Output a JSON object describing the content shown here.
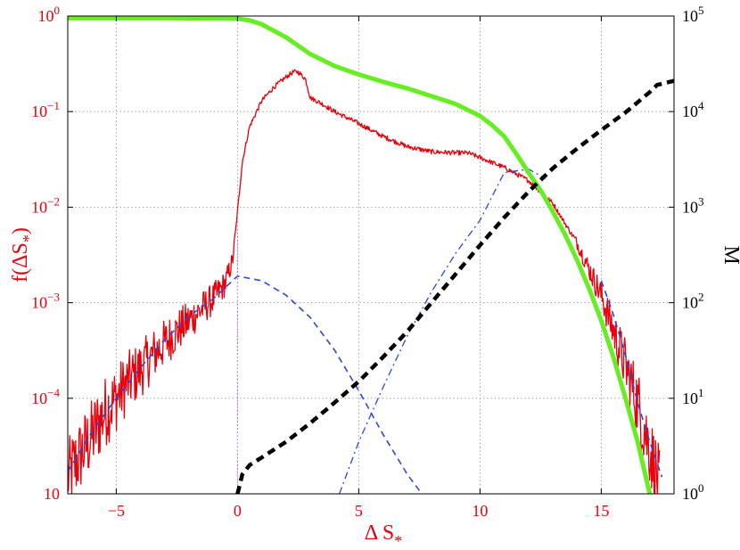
{
  "chart_data": {
    "type": "line",
    "xlabel": "Δ S*",
    "ylabel": "f(ΔS*)",
    "y2label": "M",
    "xlim": [
      -7,
      18
    ],
    "ylim": [
      1e-05,
      1
    ],
    "y2lim": [
      1,
      100000
    ],
    "yscale": "log",
    "y2scale": "log",
    "grid": true,
    "x_ticks": [
      -5,
      0,
      5,
      10,
      15
    ],
    "y_ticks": [
      1e-05,
      0.0001,
      0.001,
      0.01,
      0.1,
      1
    ],
    "y_tick_bases": [
      "10",
      "10",
      "10",
      "10",
      "10",
      "10"
    ],
    "y_tick_exps": [
      "",
      "−4",
      "−3",
      "−2",
      "−1",
      "0"
    ],
    "y2_ticks": [
      1,
      10,
      100,
      1000,
      10000,
      100000
    ],
    "y2_tick_bases": [
      "10",
      "10",
      "10",
      "10",
      "10",
      "10"
    ],
    "y2_tick_exps": [
      "0",
      "1",
      "2",
      "3",
      "4",
      "5"
    ],
    "colors": {
      "red": "#e8000b",
      "green": "#66ee22",
      "blue": "#2a48e0",
      "black": "#000000",
      "magenta": "#d070e0",
      "grid": "#7a7a7a"
    },
    "series": [
      {
        "axis": "left",
        "style": "solid-red",
        "noisy": true,
        "x": [
          -7,
          -6.5,
          -6,
          -5.5,
          -5,
          -4.5,
          -4,
          -3.5,
          -3,
          -2.5,
          -2,
          -1.5,
          -1,
          -0.5,
          -0.2,
          0,
          0.2,
          0.5,
          1,
          1.5,
          2,
          2.3,
          2.5,
          2.8,
          3,
          3.5,
          4,
          5,
          6,
          7,
          8,
          9,
          9.5,
          10,
          11,
          12,
          13,
          14,
          15,
          16,
          16.5,
          17,
          17.4
        ],
        "y": [
          1.5e-05,
          2.5e-05,
          4e-05,
          7e-05,
          0.0001,
          0.00015,
          0.0002,
          0.00028,
          0.00038,
          0.0005,
          0.00065,
          0.00085,
          0.0011,
          0.0016,
          0.0028,
          0.009,
          0.03,
          0.07,
          0.13,
          0.18,
          0.23,
          0.26,
          0.26,
          0.22,
          0.14,
          0.12,
          0.1,
          0.075,
          0.055,
          0.043,
          0.038,
          0.037,
          0.037,
          0.033,
          0.026,
          0.019,
          0.011,
          0.0042,
          0.0012,
          0.00022,
          9e-05,
          3e-05,
          1.2e-05
        ]
      },
      {
        "axis": "left",
        "style": "dashed-blue",
        "x": [
          -7,
          -6,
          -5,
          -4,
          -3,
          -2,
          -1,
          0,
          1,
          2,
          3,
          4,
          5,
          6,
          7,
          7.6
        ],
        "y": [
          1.7e-05,
          4.5e-05,
          0.0001,
          0.00021,
          0.00041,
          0.00072,
          0.0011,
          0.0019,
          0.0017,
          0.0012,
          0.0007,
          0.00032,
          0.00012,
          4.2e-05,
          1.6e-05,
          1e-05
        ]
      },
      {
        "axis": "left",
        "style": "dashed-blue",
        "x": [
          15,
          15.5,
          16,
          16.5,
          17,
          17.5
        ],
        "y": [
          0.0017,
          0.00075,
          0.00028,
          9e-05,
          3.5e-05,
          1.5e-05
        ]
      },
      {
        "axis": "left",
        "style": "dashdot-blue",
        "x": [
          4.2,
          5,
          6,
          7,
          8,
          9,
          10,
          11,
          12,
          12.7
        ],
        "y": [
          1e-05,
          3.5e-05,
          0.00013,
          0.00045,
          0.0013,
          0.0033,
          0.0073,
          0.023,
          0.025,
          0.02
        ]
      },
      {
        "axis": "left",
        "style": "dotted-magenta",
        "x": [
          0,
          0
        ],
        "y": [
          1e-05,
          0.009
        ]
      },
      {
        "axis": "right",
        "style": "solid-green",
        "x": [
          -7,
          -5,
          -3,
          -1,
          0,
          0.5,
          1,
          2,
          3,
          4,
          5,
          6,
          7,
          8,
          9,
          10,
          10.5,
          11,
          11.5,
          12,
          12.5,
          13,
          13.5,
          14,
          14.5,
          15,
          15.5,
          16,
          16.5,
          17
        ],
        "y": [
          95000,
          95000,
          95000,
          94500,
          94000,
          90000,
          82000,
          60000,
          40000,
          30000,
          24500,
          20500,
          17500,
          14500,
          12000,
          9000,
          7200,
          5500,
          3600,
          2300,
          1500,
          900,
          520,
          280,
          140,
          65,
          27,
          10,
          3.5,
          1
        ]
      },
      {
        "axis": "right",
        "style": "dashed-black",
        "x": [
          0,
          0.2,
          0.5,
          1,
          2,
          3,
          4,
          5,
          6,
          7,
          8,
          9,
          10,
          11,
          12,
          13,
          14,
          15,
          16,
          17,
          17.3,
          18
        ],
        "y": [
          1,
          1.6,
          2,
          2.4,
          3.5,
          5.5,
          9,
          15,
          27,
          50,
          100,
          200,
          400,
          780,
          1450,
          2550,
          4100,
          6400,
          9800,
          16000,
          19000,
          21000
        ]
      }
    ]
  }
}
